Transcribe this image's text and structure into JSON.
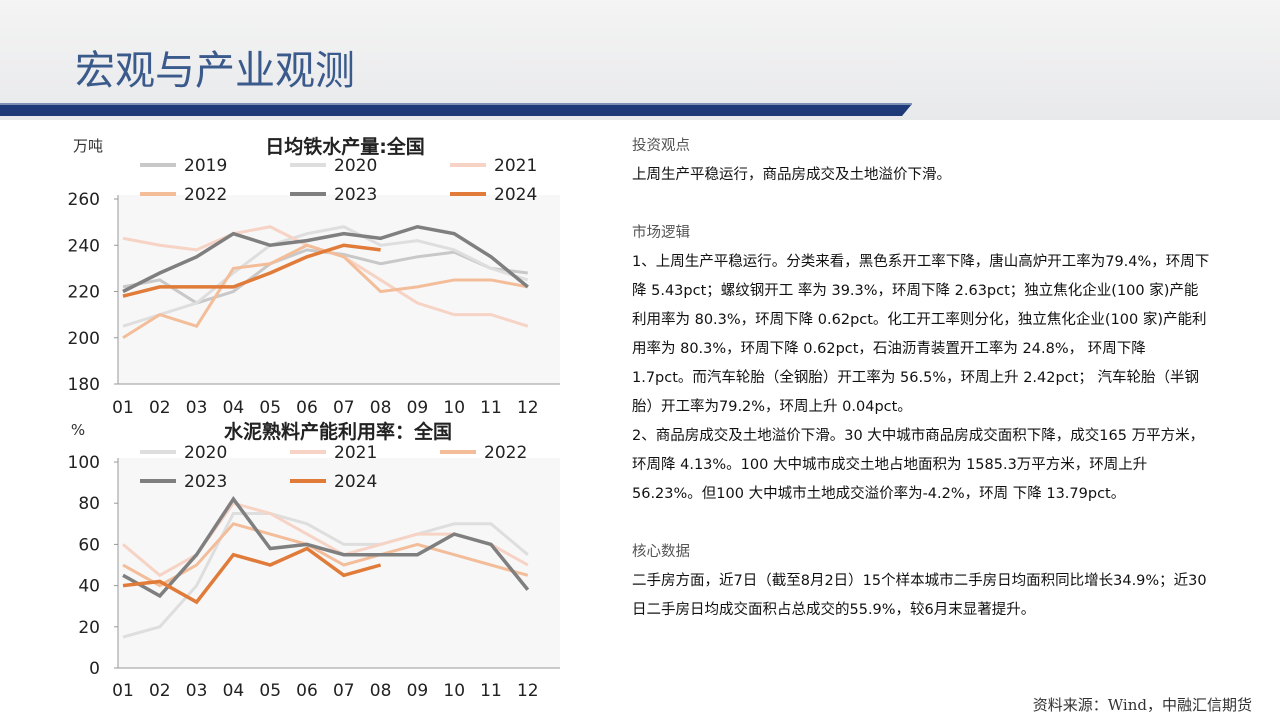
{
  "title": "宏观与产业观测",
  "chart_data": [
    {
      "type": "line",
      "title": "日均铁水产量:全国",
      "unit": "万吨",
      "categories": [
        "01",
        "02",
        "03",
        "04",
        "05",
        "06",
        "07",
        "08",
        "09",
        "10",
        "11",
        "12"
      ],
      "series": [
        {
          "name": "2019",
          "color": "#c8c8c8",
          "values": [
            222,
            225,
            215,
            220,
            232,
            238,
            236,
            232,
            235,
            237,
            230,
            228
          ]
        },
        {
          "name": "2020",
          "color": "#dedede",
          "values": [
            205,
            210,
            215,
            228,
            240,
            245,
            248,
            240,
            242,
            238,
            230,
            225
          ]
        },
        {
          "name": "2021",
          "color": "#f6d3c4",
          "values": [
            243,
            240,
            238,
            245,
            248,
            240,
            235,
            225,
            215,
            210,
            210,
            205
          ]
        },
        {
          "name": "2022",
          "color": "#f3bd9a",
          "values": [
            200,
            210,
            205,
            230,
            232,
            240,
            235,
            220,
            222,
            225,
            225,
            222
          ]
        },
        {
          "name": "2023",
          "color": "#7f7f7f",
          "values": [
            220,
            228,
            235,
            245,
            240,
            242,
            245,
            243,
            248,
            245,
            235,
            222
          ]
        },
        {
          "name": "2024",
          "color": "#e07b39",
          "values": [
            218,
            222,
            222,
            222,
            228,
            235,
            240,
            238,
            null,
            null,
            null,
            null
          ]
        }
      ],
      "ylim": [
        180,
        260
      ],
      "yticks": [
        180,
        200,
        220,
        240,
        260
      ]
    },
    {
      "type": "line",
      "title": "水泥熟料产能利用率：全国",
      "unit": "%",
      "categories": [
        "01",
        "02",
        "03",
        "04",
        "05",
        "06",
        "07",
        "08",
        "09",
        "10",
        "11",
        "12"
      ],
      "series": [
        {
          "name": "2020",
          "color": "#dedede",
          "values": [
            15,
            20,
            40,
            75,
            75,
            70,
            60,
            60,
            65,
            70,
            70,
            55
          ]
        },
        {
          "name": "2021",
          "color": "#f6d3c4",
          "values": [
            60,
            45,
            55,
            80,
            75,
            65,
            55,
            60,
            65,
            65,
            60,
            50
          ]
        },
        {
          "name": "2022",
          "color": "#f3bd9a",
          "values": [
            50,
            40,
            50,
            70,
            65,
            60,
            50,
            55,
            60,
            55,
            50,
            45
          ]
        },
        {
          "name": "2023",
          "color": "#7f7f7f",
          "values": [
            45,
            35,
            55,
            82,
            58,
            60,
            55,
            55,
            55,
            65,
            60,
            38
          ]
        },
        {
          "name": "2024",
          "color": "#e07b39",
          "values": [
            40,
            42,
            32,
            55,
            50,
            58,
            45,
            50,
            null,
            null,
            null,
            null
          ]
        }
      ],
      "ylim": [
        0,
        100
      ],
      "yticks": [
        0,
        20,
        40,
        60,
        80,
        100
      ]
    }
  ],
  "sections": [
    {
      "heading": "投资观点",
      "paragraphs": [
        "上周生产平稳运行，商品房成交及土地溢价下滑。"
      ]
    },
    {
      "heading": "市场逻辑",
      "paragraphs": [
        "1、上周生产平稳运行。分类来看，黑色系开工率下降，唐山高炉开工率为79.4%，环周下降 5.43pct；螺纹钢开工 率为 39.3%，环周下降 2.63pct；独立焦化企业(100 家)产能利用率为 80.3%，环周下降 0.62pct。化工开工率则分化，独立焦化企业(100 家)产能利用率为 80.3%，环周下降 0.62pct，石油沥青装置开工率为 24.8%， 环周下降 1.7pct。而汽车轮胎（全钢胎）开工率为 56.5%，环周上升 2.42pct； 汽车轮胎（半钢胎）开工率为79.2%，环周上升 0.04pct。",
        "2、商品房成交及土地溢价下滑。30 大中城市商品房成交面积下降，成交165 万平方米，环周降 4.13%。100 大中城市成交土地占地面积为 1585.3万平方米，环周上升 56.23%。但100 大中城市土地成交溢价率为-4.2%，环周 下降 13.79pct。"
      ]
    },
    {
      "heading": "核心数据",
      "paragraphs": [
        "二手房方面，近7日（截至8月2日）15个样本城市二手房日均面积同比增长34.9%；近30日二手房日均成交面积占总成交的55.9%，较6月末显著提升。"
      ]
    }
  ],
  "source": "资料来源：Wind，中融汇信期货"
}
